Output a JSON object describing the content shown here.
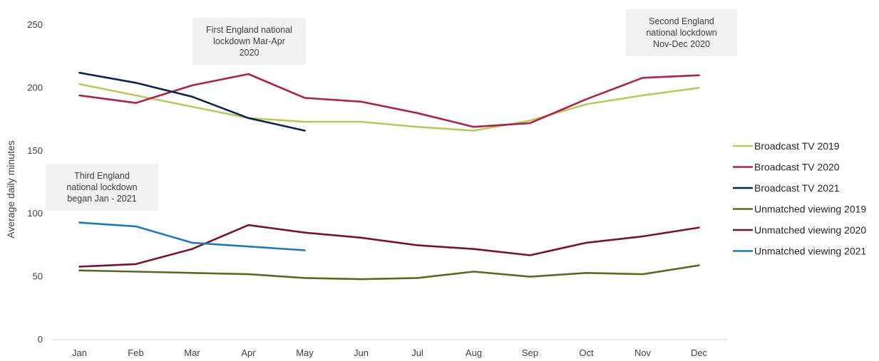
{
  "chart_data": {
    "type": "line",
    "title": "",
    "xlabel": "",
    "ylabel": "Average daily minutes",
    "categories": [
      "Jan",
      "Feb",
      "Mar",
      "Apr",
      "May",
      "Jun",
      "Jul",
      "Aug",
      "Sep",
      "Oct",
      "Nov",
      "Dec"
    ],
    "ylim": [
      0,
      250
    ],
    "yticks": [
      "0",
      "50",
      "100",
      "150",
      "200",
      "250"
    ],
    "grid": false,
    "legend_position": "right",
    "series": [
      {
        "name": "Broadcast TV 2019",
        "color": "#b5cc5a",
        "values": [
          203,
          194,
          185,
          176,
          173,
          173,
          169,
          166,
          174,
          187,
          194,
          200
        ]
      },
      {
        "name": "Broadcast TV 2020",
        "color": "#b0204a",
        "values": [
          194,
          188,
          202,
          211,
          192,
          189,
          180,
          169,
          172,
          191,
          208,
          210
        ]
      },
      {
        "name": "Broadcast TV 2021",
        "color": "#0c2452",
        "values": [
          212,
          204,
          193,
          176,
          166,
          null,
          null,
          null,
          null,
          null,
          null,
          null
        ]
      },
      {
        "name": "Unmatched viewing 2019",
        "color": "#5b6b1e",
        "values": [
          55,
          54,
          53,
          52,
          49,
          48,
          49,
          54,
          50,
          53,
          52,
          59
        ]
      },
      {
        "name": "Unmatched viewing 2020",
        "color": "#7a1035",
        "values": [
          58,
          60,
          72,
          91,
          85,
          81,
          75,
          72,
          67,
          77,
          82,
          89
        ]
      },
      {
        "name": "Unmatched viewing 2021",
        "color": "#1a7abf",
        "values": [
          93,
          90,
          77,
          74,
          71,
          null,
          null,
          null,
          null,
          null,
          null,
          null
        ]
      }
    ],
    "annotations": [
      {
        "id": "first",
        "text_lines": [
          "First England national",
          "lockdown Mar-Apr",
          "2020"
        ]
      },
      {
        "id": "second",
        "text_lines": [
          "Second England",
          "national lockdown",
          "Nov-Dec 2020"
        ]
      },
      {
        "id": "third",
        "text_lines": [
          "Third England",
          "national lockdown",
          "began Jan - 2021"
        ]
      }
    ]
  }
}
